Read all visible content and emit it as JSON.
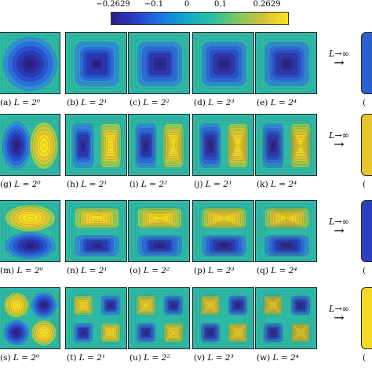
{
  "colorbar": {
    "ticks": [
      "−0.2629",
      "−0.1",
      "0",
      "0.1",
      "0.2629"
    ],
    "colors": [
      "#2b1f8c",
      "#2a40c8",
      "#1a78e0",
      "#12a8c8",
      "#2cbfa0",
      "#7dc860",
      "#d0c23a",
      "#fbe31f"
    ]
  },
  "arrow": {
    "label": "L→∞",
    "glyph": "→"
  },
  "rows": [
    {
      "pattern": "blob",
      "captions": [
        {
          "tag": "(a)",
          "eq": "L = 2⁰"
        },
        {
          "tag": "(b)",
          "eq": "L = 2¹"
        },
        {
          "tag": "(c)",
          "eq": "L = 2²"
        },
        {
          "tag": "(d)",
          "eq": "L = 2³"
        },
        {
          "tag": "(e)",
          "eq": "L = 2⁴"
        }
      ],
      "limit_tag": "("
    },
    {
      "pattern": "horizontal-dipole",
      "captions": [
        {
          "tag": "(g)",
          "eq": "L = 2⁰"
        },
        {
          "tag": "(h)",
          "eq": "L = 2¹"
        },
        {
          "tag": "(i)",
          "eq": "L = 2²"
        },
        {
          "tag": "(j)",
          "eq": "L = 2³"
        },
        {
          "tag": "(k)",
          "eq": "L = 2⁴"
        }
      ],
      "limit_tag": "("
    },
    {
      "pattern": "vertical-dipole",
      "captions": [
        {
          "tag": "(m)",
          "eq": "L = 2⁰"
        },
        {
          "tag": "(n)",
          "eq": "L = 2¹"
        },
        {
          "tag": "(o)",
          "eq": "L = 2²"
        },
        {
          "tag": "(p)",
          "eq": "L = 2³"
        },
        {
          "tag": "(q)",
          "eq": "L = 2⁴"
        }
      ],
      "limit_tag": "("
    },
    {
      "pattern": "quadrupole",
      "captions": [
        {
          "tag": "(s)",
          "eq": "L = 2⁰"
        },
        {
          "tag": "(t)",
          "eq": "L = 2¹"
        },
        {
          "tag": "(u)",
          "eq": "L = 2²"
        },
        {
          "tag": "(v)",
          "eq": "L = 2³"
        },
        {
          "tag": "(w)",
          "eq": "L = 2⁴"
        }
      ],
      "limit_tag": "("
    }
  ]
}
